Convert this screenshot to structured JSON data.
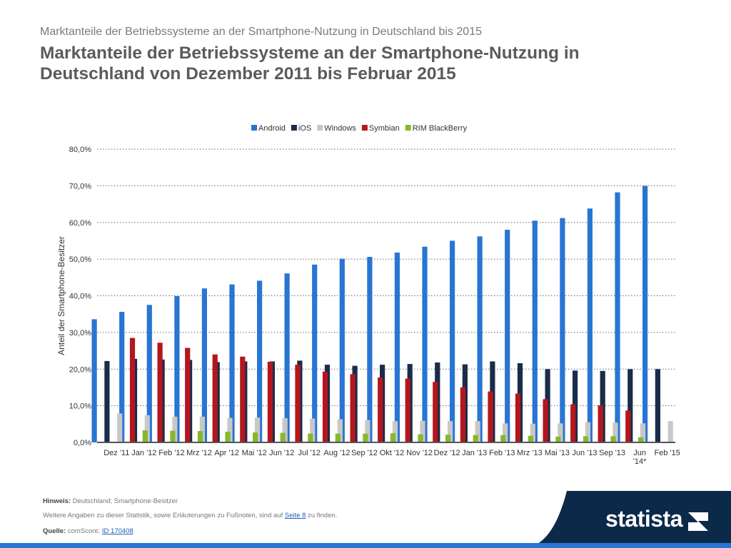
{
  "header": {
    "subtitle": "Marktanteile der Betriebssysteme an der Smartphone-Nutzung in Deutschland bis 2015",
    "title": "Marktanteile der Betriebssysteme an der Smartphone-Nutzung in Deutschland von Dezember 2011 bis Februar 2015"
  },
  "chart_data": {
    "type": "bar",
    "ylabel": "Anteil der Smartphone-Besitzer",
    "ylim": [
      0,
      80
    ],
    "y_ticks": [
      "0,0%",
      "10,0%",
      "20,0%",
      "30,0%",
      "40,0%",
      "50,0%",
      "60,0%",
      "70,0%",
      "80,0%"
    ],
    "grid": "dotted horizontal",
    "legend_position": "top-center",
    "categories": [
      "Dez '11",
      "Jan '12",
      "Feb '12",
      "Mrz '12",
      "Apr '12",
      "Mai '12",
      "Jun '12",
      "Jul '12",
      "Aug '12",
      "Sep '12",
      "Okt '12",
      "Nov '12",
      "Dez '12",
      "Jan '13",
      "Feb '13",
      "Mrz '13",
      "Mai '13",
      "Jun '13",
      "Sep '13",
      "Jun '14*",
      "Feb '15"
    ],
    "series": [
      {
        "name": "Android",
        "color": "#2875d3",
        "values": [
          33.6,
          35.6,
          37.5,
          39.9,
          42.0,
          43.1,
          44.1,
          46.1,
          48.5,
          50.1,
          50.6,
          51.8,
          53.4,
          55.0,
          56.2,
          58.0,
          60.5,
          61.2,
          63.8,
          68.2,
          70.0
        ]
      },
      {
        "name": "iOS",
        "color": "#1a2c4a",
        "values": [
          22.2,
          22.8,
          22.6,
          22.5,
          21.9,
          22.1,
          22.1,
          22.3,
          21.2,
          20.9,
          21.2,
          21.4,
          21.8,
          21.3,
          22.1,
          21.6,
          20.0,
          19.6,
          19.5,
          20.0,
          20.0
        ]
      },
      {
        "name": "Windows",
        "color": "#c8c8c8",
        "values": [
          7.9,
          7.4,
          7.0,
          7.0,
          6.7,
          6.8,
          6.6,
          6.5,
          6.3,
          6.1,
          5.8,
          5.9,
          5.8,
          5.8,
          5.2,
          5.1,
          5.2,
          5.5,
          5.4,
          5.2,
          5.8
        ]
      },
      {
        "name": "Symbian",
        "color": "#b4161d",
        "values": [
          28.5,
          27.2,
          25.8,
          24.0,
          23.4,
          22.0,
          21.2,
          19.3,
          18.6,
          17.7,
          17.4,
          16.5,
          15.0,
          13.9,
          13.3,
          11.8,
          10.4,
          10.1,
          8.7,
          null,
          null
        ]
      },
      {
        "name": "RIM BlackBerry",
        "color": "#86b82c",
        "values": [
          3.3,
          3.2,
          3.1,
          2.9,
          2.7,
          2.6,
          2.4,
          2.4,
          2.4,
          2.5,
          2.2,
          2.1,
          2.0,
          2.0,
          1.8,
          1.6,
          1.7,
          1.7,
          1.4,
          null,
          null
        ]
      }
    ]
  },
  "notes": {
    "hint_label": "Hinweis:",
    "hint_text": " Deutschland; Smartphone-Besitzer",
    "more_prefix": "Weitere Angaben zu dieser Statistik, sowie Erläuterungen zu Fußnoten, sind auf ",
    "more_link": "Seite 8",
    "more_suffix": " zu finden.",
    "source_label": "Quelle:",
    "source_text": " comScore; ",
    "source_link": "ID 170408"
  },
  "brand": {
    "logo_text": "statista",
    "band_color": "#0b2a4a",
    "accent_color": "#2875d3"
  }
}
